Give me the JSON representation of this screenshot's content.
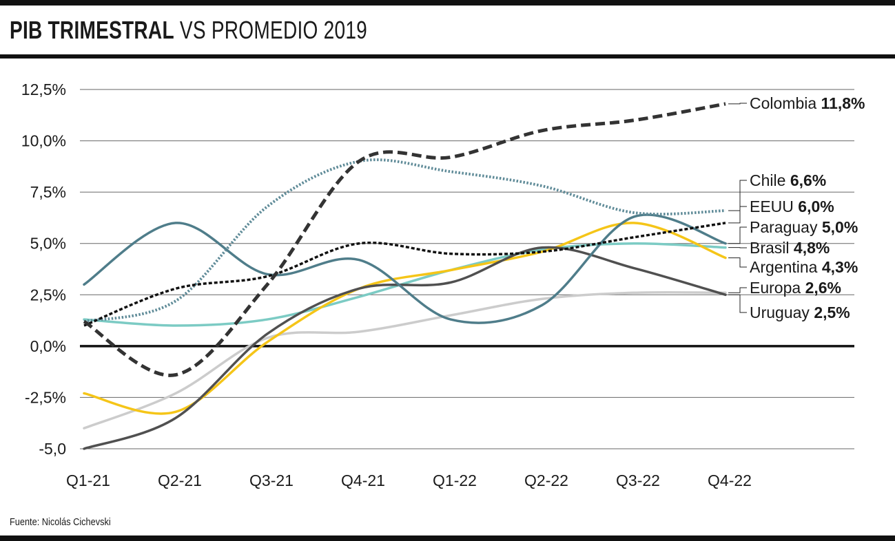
{
  "title": {
    "bold": "PIB TRIMESTRAL",
    "rest": " VS PROMEDIO 2019"
  },
  "source": "Fuente: Nicolás Cichevski",
  "chart_data": {
    "type": "line",
    "title": "PIB TRIMESTRAL VS PROMEDIO 2019",
    "xlabel": "",
    "ylabel": "",
    "categories": [
      "Q1-21",
      "Q2-21",
      "Q3-21",
      "Q4-21",
      "Q1-22",
      "Q2-22",
      "Q3-22",
      "Q4-22"
    ],
    "ylim": [
      -5,
      12.5
    ],
    "yticks": [
      12.5,
      10,
      7.5,
      5,
      2.5,
      0,
      -2.5,
      -5
    ],
    "ytick_labels": [
      "12,5%",
      "10,0%",
      "7,5%",
      "5,0%",
      "2,5%",
      "0,0%",
      "-2,5%",
      "-5,0"
    ],
    "grid": true,
    "legend": "direct labels at right end of lines",
    "series": [
      {
        "name": "Colombia",
        "label_value": "11,8%",
        "color": "#333333",
        "style": "dashed-thick",
        "values": [
          1.2,
          -1.4,
          3.0,
          9.0,
          9.2,
          10.5,
          11.0,
          11.8
        ]
      },
      {
        "name": "Chile",
        "label_value": "6,6%",
        "color": "#5f8b98",
        "style": "dotted",
        "values": [
          1.2,
          2.2,
          6.8,
          9.0,
          8.5,
          7.8,
          6.5,
          6.6
        ]
      },
      {
        "name": "EEUU",
        "label_value": "6,0%",
        "color": "#111111",
        "style": "dashed-thin",
        "values": [
          1.0,
          2.8,
          3.4,
          5.0,
          4.5,
          4.6,
          5.3,
          6.0
        ]
      },
      {
        "name": "Paraguay",
        "label_value": "5,0%",
        "color": "#4f7d8a",
        "style": "solid",
        "values": [
          3.0,
          6.0,
          3.5,
          4.2,
          1.3,
          2.0,
          6.3,
          5.0
        ]
      },
      {
        "name": "Brasil",
        "label_value": "4,8%",
        "color": "#7ccbc4",
        "style": "solid",
        "values": [
          1.3,
          1.0,
          1.3,
          2.4,
          3.7,
          4.7,
          5.0,
          4.8
        ]
      },
      {
        "name": "Argentina",
        "label_value": "4,3%",
        "color": "#f5c518",
        "style": "solid",
        "values": [
          -2.3,
          -3.2,
          0.2,
          2.8,
          3.7,
          4.6,
          6.0,
          4.3
        ]
      },
      {
        "name": "Europa",
        "label_value": "2,6%",
        "color": "#cccccc",
        "style": "solid",
        "values": [
          -4.0,
          -2.3,
          0.4,
          0.7,
          1.5,
          2.3,
          2.6,
          2.6
        ]
      },
      {
        "name": "Uruguay",
        "label_value": "2,5%",
        "color": "#505050",
        "style": "solid",
        "values": [
          -5.0,
          -3.5,
          0.6,
          2.8,
          3.1,
          4.8,
          3.8,
          2.5
        ]
      }
    ]
  }
}
